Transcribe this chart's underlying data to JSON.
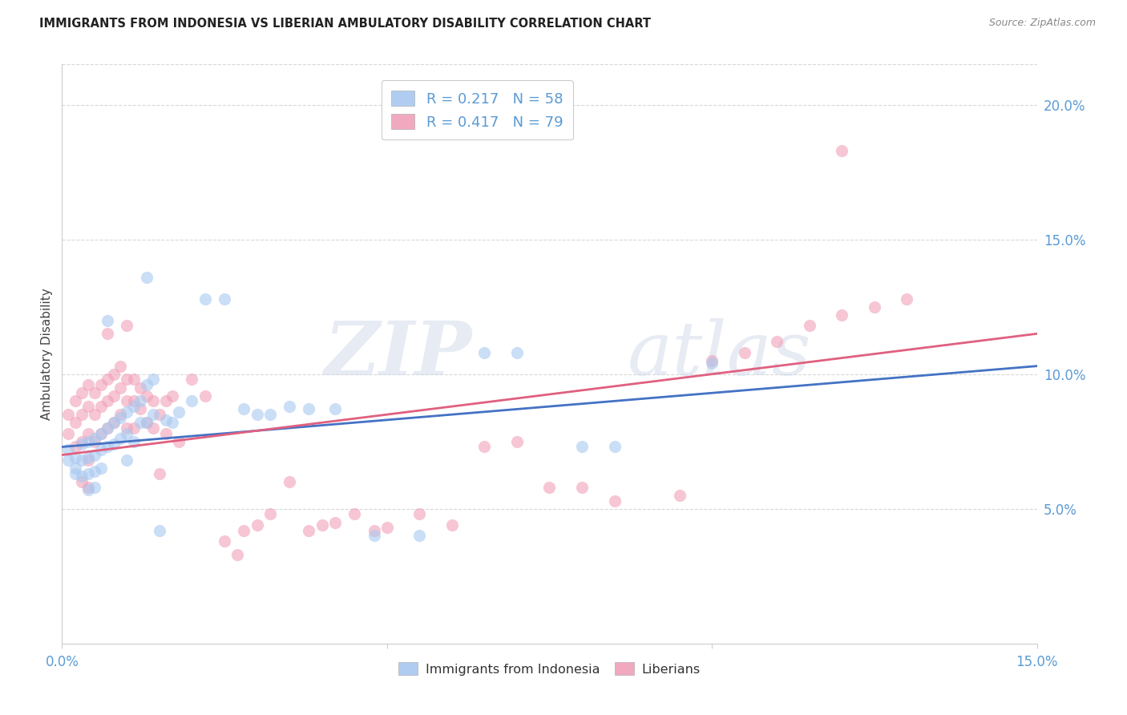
{
  "title": "IMMIGRANTS FROM INDONESIA VS LIBERIAN AMBULATORY DISABILITY CORRELATION CHART",
  "source": "Source: ZipAtlas.com",
  "ylabel": "Ambulatory Disability",
  "xlim": [
    0.0,
    0.15
  ],
  "ylim": [
    0.0,
    0.215
  ],
  "yticks": [
    0.05,
    0.1,
    0.15,
    0.2
  ],
  "ytick_labels": [
    "5.0%",
    "10.0%",
    "15.0%",
    "20.0%"
  ],
  "legend_entries": [
    {
      "label": "Immigrants from Indonesia",
      "R": "0.217",
      "N": "58",
      "color": "#a8c8f0"
    },
    {
      "label": "Liberians",
      "R": "0.417",
      "N": "79",
      "color": "#f0a0b8"
    }
  ],
  "blue_color": "#a8c8f0",
  "pink_color": "#f0a0b8",
  "line_blue": "#4472c4",
  "line_pink": "#e06080",
  "axis_color": "#5b9bd5",
  "watermark1": "ZIP",
  "watermark2": "atlas",
  "background_color": "#ffffff",
  "grid_color": "#d8d8d8",
  "blue_scatter": [
    [
      0.001,
      0.072
    ],
    [
      0.001,
      0.068
    ],
    [
      0.002,
      0.069
    ],
    [
      0.002,
      0.065
    ],
    [
      0.002,
      0.063
    ],
    [
      0.003,
      0.074
    ],
    [
      0.003,
      0.068
    ],
    [
      0.003,
      0.062
    ],
    [
      0.004,
      0.075
    ],
    [
      0.004,
      0.069
    ],
    [
      0.004,
      0.063
    ],
    [
      0.004,
      0.057
    ],
    [
      0.005,
      0.076
    ],
    [
      0.005,
      0.07
    ],
    [
      0.005,
      0.064
    ],
    [
      0.005,
      0.058
    ],
    [
      0.006,
      0.078
    ],
    [
      0.006,
      0.072
    ],
    [
      0.006,
      0.065
    ],
    [
      0.007,
      0.08
    ],
    [
      0.007,
      0.073
    ],
    [
      0.007,
      0.12
    ],
    [
      0.008,
      0.082
    ],
    [
      0.008,
      0.074
    ],
    [
      0.009,
      0.084
    ],
    [
      0.009,
      0.076
    ],
    [
      0.01,
      0.086
    ],
    [
      0.01,
      0.078
    ],
    [
      0.01,
      0.068
    ],
    [
      0.011,
      0.088
    ],
    [
      0.011,
      0.075
    ],
    [
      0.012,
      0.09
    ],
    [
      0.012,
      0.082
    ],
    [
      0.013,
      0.136
    ],
    [
      0.013,
      0.096
    ],
    [
      0.013,
      0.082
    ],
    [
      0.014,
      0.098
    ],
    [
      0.014,
      0.085
    ],
    [
      0.015,
      0.042
    ],
    [
      0.016,
      0.083
    ],
    [
      0.017,
      0.082
    ],
    [
      0.018,
      0.086
    ],
    [
      0.02,
      0.09
    ],
    [
      0.022,
      0.128
    ],
    [
      0.025,
      0.128
    ],
    [
      0.028,
      0.087
    ],
    [
      0.03,
      0.085
    ],
    [
      0.032,
      0.085
    ],
    [
      0.035,
      0.088
    ],
    [
      0.038,
      0.087
    ],
    [
      0.042,
      0.087
    ],
    [
      0.048,
      0.04
    ],
    [
      0.055,
      0.04
    ],
    [
      0.065,
      0.108
    ],
    [
      0.07,
      0.108
    ],
    [
      0.08,
      0.073
    ],
    [
      0.085,
      0.073
    ],
    [
      0.1,
      0.104
    ]
  ],
  "pink_scatter": [
    [
      0.001,
      0.085
    ],
    [
      0.001,
      0.078
    ],
    [
      0.002,
      0.09
    ],
    [
      0.002,
      0.082
    ],
    [
      0.002,
      0.073
    ],
    [
      0.003,
      0.093
    ],
    [
      0.003,
      0.085
    ],
    [
      0.003,
      0.075
    ],
    [
      0.004,
      0.096
    ],
    [
      0.004,
      0.088
    ],
    [
      0.004,
      0.078
    ],
    [
      0.004,
      0.068
    ],
    [
      0.005,
      0.093
    ],
    [
      0.005,
      0.085
    ],
    [
      0.005,
      0.075
    ],
    [
      0.006,
      0.096
    ],
    [
      0.006,
      0.088
    ],
    [
      0.006,
      0.078
    ],
    [
      0.007,
      0.098
    ],
    [
      0.007,
      0.09
    ],
    [
      0.007,
      0.08
    ],
    [
      0.008,
      0.1
    ],
    [
      0.008,
      0.092
    ],
    [
      0.008,
      0.082
    ],
    [
      0.009,
      0.103
    ],
    [
      0.009,
      0.095
    ],
    [
      0.009,
      0.085
    ],
    [
      0.01,
      0.098
    ],
    [
      0.01,
      0.09
    ],
    [
      0.01,
      0.08
    ],
    [
      0.011,
      0.098
    ],
    [
      0.011,
      0.09
    ],
    [
      0.011,
      0.08
    ],
    [
      0.012,
      0.095
    ],
    [
      0.012,
      0.087
    ],
    [
      0.013,
      0.092
    ],
    [
      0.013,
      0.082
    ],
    [
      0.014,
      0.09
    ],
    [
      0.014,
      0.08
    ],
    [
      0.015,
      0.085
    ],
    [
      0.015,
      0.063
    ],
    [
      0.016,
      0.09
    ],
    [
      0.016,
      0.078
    ],
    [
      0.017,
      0.092
    ],
    [
      0.018,
      0.075
    ],
    [
      0.02,
      0.098
    ],
    [
      0.022,
      0.092
    ],
    [
      0.025,
      0.038
    ],
    [
      0.027,
      0.033
    ],
    [
      0.028,
      0.042
    ],
    [
      0.03,
      0.044
    ],
    [
      0.032,
      0.048
    ],
    [
      0.035,
      0.06
    ],
    [
      0.038,
      0.042
    ],
    [
      0.04,
      0.044
    ],
    [
      0.042,
      0.045
    ],
    [
      0.045,
      0.048
    ],
    [
      0.048,
      0.042
    ],
    [
      0.055,
      0.048
    ],
    [
      0.065,
      0.073
    ],
    [
      0.07,
      0.075
    ],
    [
      0.075,
      0.058
    ],
    [
      0.08,
      0.058
    ],
    [
      0.085,
      0.053
    ],
    [
      0.095,
      0.055
    ],
    [
      0.1,
      0.105
    ],
    [
      0.105,
      0.108
    ],
    [
      0.11,
      0.112
    ],
    [
      0.115,
      0.118
    ],
    [
      0.12,
      0.122
    ],
    [
      0.125,
      0.125
    ],
    [
      0.13,
      0.128
    ],
    [
      0.007,
      0.115
    ],
    [
      0.01,
      0.118
    ],
    [
      0.12,
      0.183
    ],
    [
      0.003,
      0.06
    ],
    [
      0.004,
      0.058
    ],
    [
      0.05,
      0.043
    ],
    [
      0.06,
      0.044
    ]
  ],
  "blue_line_x": [
    0.0,
    0.15
  ],
  "blue_line_y": [
    0.073,
    0.103
  ],
  "pink_line_x": [
    0.0,
    0.15
  ],
  "pink_line_y": [
    0.07,
    0.115
  ]
}
